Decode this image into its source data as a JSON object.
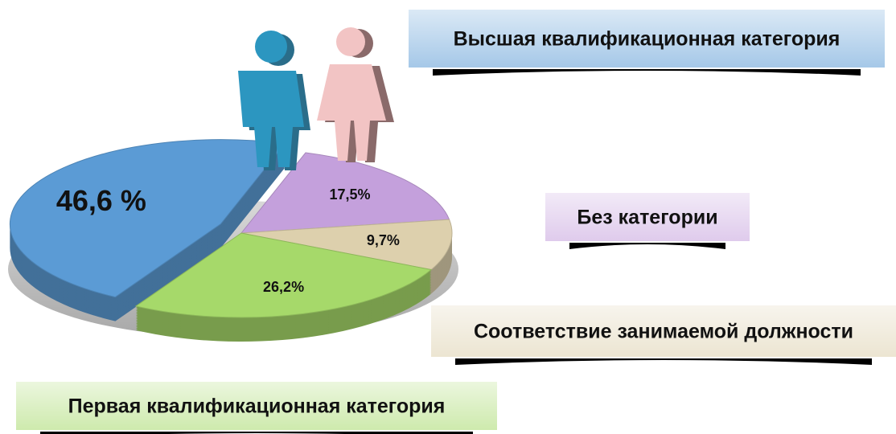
{
  "chart_data": {
    "type": "pie",
    "categories": [
      "Высшая квалификационная категория",
      "Без категории",
      "Соответствие занимаемой должности",
      "Первая квалификационная категория"
    ],
    "values": [
      46.6,
      17.5,
      9.7,
      26.2
    ],
    "value_labels": [
      "46,6 %",
      "17,5%",
      "9,7%",
      "26,2%"
    ],
    "colors": [
      "#5b9bd5",
      "#c4a0dc",
      "#ddd0ad",
      "#a6d96a"
    ]
  }
}
